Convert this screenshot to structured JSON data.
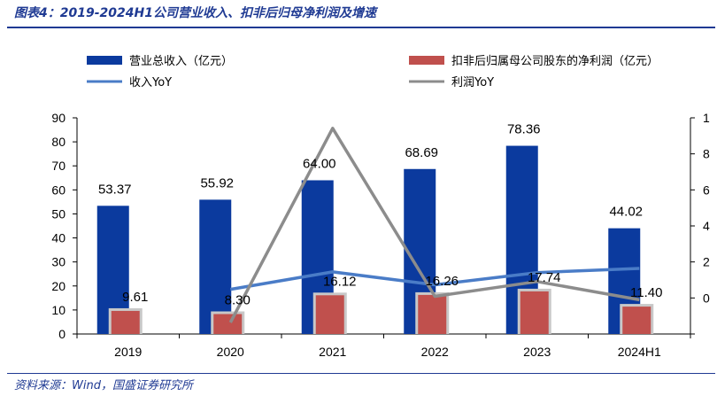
{
  "header": {
    "title": "图表4：2019-2024H1公司营业收入、扣非后归母净利润及增速"
  },
  "footer": {
    "source": "资料来源：Wind，国盛证券研究所"
  },
  "colors": {
    "revenue_bar": "#0b3a9e",
    "profit_bar": "#c0504d",
    "revenue_yoy_line": "#4a7cc7",
    "profit_yoy_line": "#8c8c8c",
    "title_blue": "#1f3a93"
  },
  "chart_data": {
    "type": "bar",
    "categories": [
      "2019",
      "2020",
      "2021",
      "2022",
      "2023",
      "2024H1"
    ],
    "series": [
      {
        "name": "营业总收入（亿元）",
        "kind": "bar",
        "axis": "left",
        "values": [
          53.37,
          55.92,
          64.0,
          68.69,
          78.36,
          44.02
        ]
      },
      {
        "name": "扣非后归属母公司股东的净利润（亿元）",
        "kind": "bar",
        "axis": "left",
        "values": [
          9.61,
          8.3,
          16.12,
          16.26,
          17.74,
          11.4
        ]
      },
      {
        "name": "收入YoY",
        "kind": "line",
        "axis": "right",
        "values": [
          null,
          4.8,
          14.5,
          7.3,
          14.1,
          16.4
        ]
      },
      {
        "name": "利润YoY",
        "kind": "line",
        "axis": "right",
        "values": [
          null,
          -13.6,
          94.2,
          0.9,
          9.1,
          -1.0
        ]
      }
    ],
    "left_axis": {
      "ylim": [
        0,
        90
      ],
      "ticks": [
        "0",
        "10",
        "20",
        "30",
        "40",
        "50",
        "60",
        "70",
        "80",
        "90"
      ]
    },
    "right_axis": {
      "ylim": [
        -20,
        100
      ],
      "ticks": [
        "",
        "0",
        "2",
        "4",
        "6",
        "8",
        "1"
      ]
    },
    "data_labels": {
      "revenue": [
        "53.37",
        "55.92",
        "64.00",
        "68.69",
        "78.36",
        "44.02"
      ],
      "profit": [
        "9.61",
        "8.30",
        "16.12",
        "16.26",
        "17.74",
        "11.40"
      ]
    },
    "legend_placement": "top",
    "grid": false
  }
}
